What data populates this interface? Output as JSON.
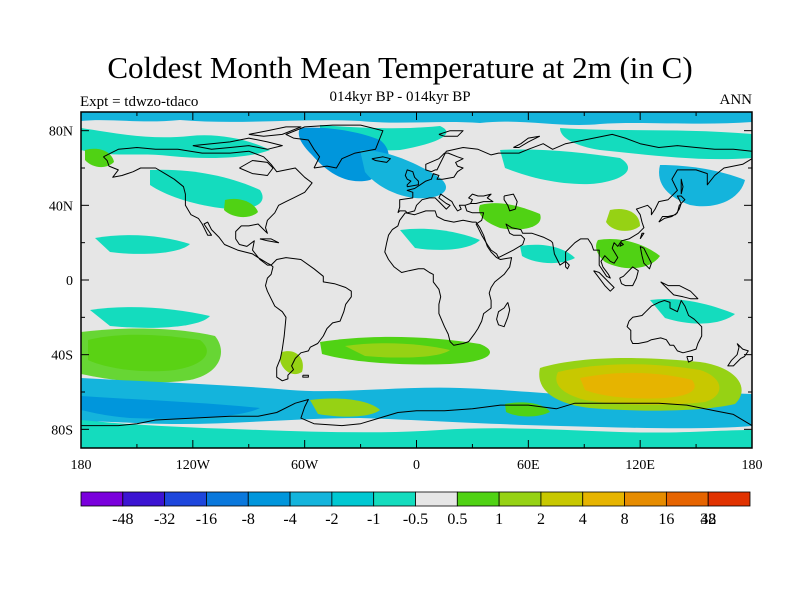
{
  "title": "Coldest Month Mean Temperature at 2m (in C)",
  "subtitle": "014kyr BP - 014kyr BP",
  "left_label": "Expt = tdwzo-tdaco",
  "right_label": "ANN",
  "map": {
    "projection": "cylindrical-equidistant",
    "lon_range": [
      -180,
      180
    ],
    "lat_range": [
      -90,
      90
    ],
    "ocean_background": "#e6e6e6",
    "coastline_color": "#000000",
    "lat_ticks": [
      {
        "value": 80,
        "label": "80N"
      },
      {
        "value": 40,
        "label": "40N"
      },
      {
        "value": 0,
        "label": "0"
      },
      {
        "value": -40,
        "label": "40S"
      },
      {
        "value": -80,
        "label": "80S"
      }
    ],
    "lon_ticks": [
      {
        "value": -180,
        "label": "180"
      },
      {
        "value": -120,
        "label": "120W"
      },
      {
        "value": -60,
        "label": "60W"
      },
      {
        "value": 0,
        "label": "0"
      },
      {
        "value": 60,
        "label": "60E"
      },
      {
        "value": 120,
        "label": "120E"
      },
      {
        "value": 180,
        "label": "180"
      }
    ]
  },
  "colorbar": {
    "colors": [
      "#7a00dc",
      "#3c14d2",
      "#1e46dc",
      "#0a78dc",
      "#0096dc",
      "#14b4dc",
      "#00c8d2",
      "#14dcbe",
      "#e6e6e6",
      "#50d214",
      "#96d214",
      "#c8c800",
      "#e6b400",
      "#e68c00",
      "#e66400",
      "#e13200"
    ],
    "labels": [
      "-48",
      "-32",
      "-16",
      "-8",
      "-4",
      "-2",
      "-1",
      "-0.5",
      "0.5",
      "1",
      "2",
      "4",
      "8",
      "16",
      "32",
      "48"
    ]
  }
}
